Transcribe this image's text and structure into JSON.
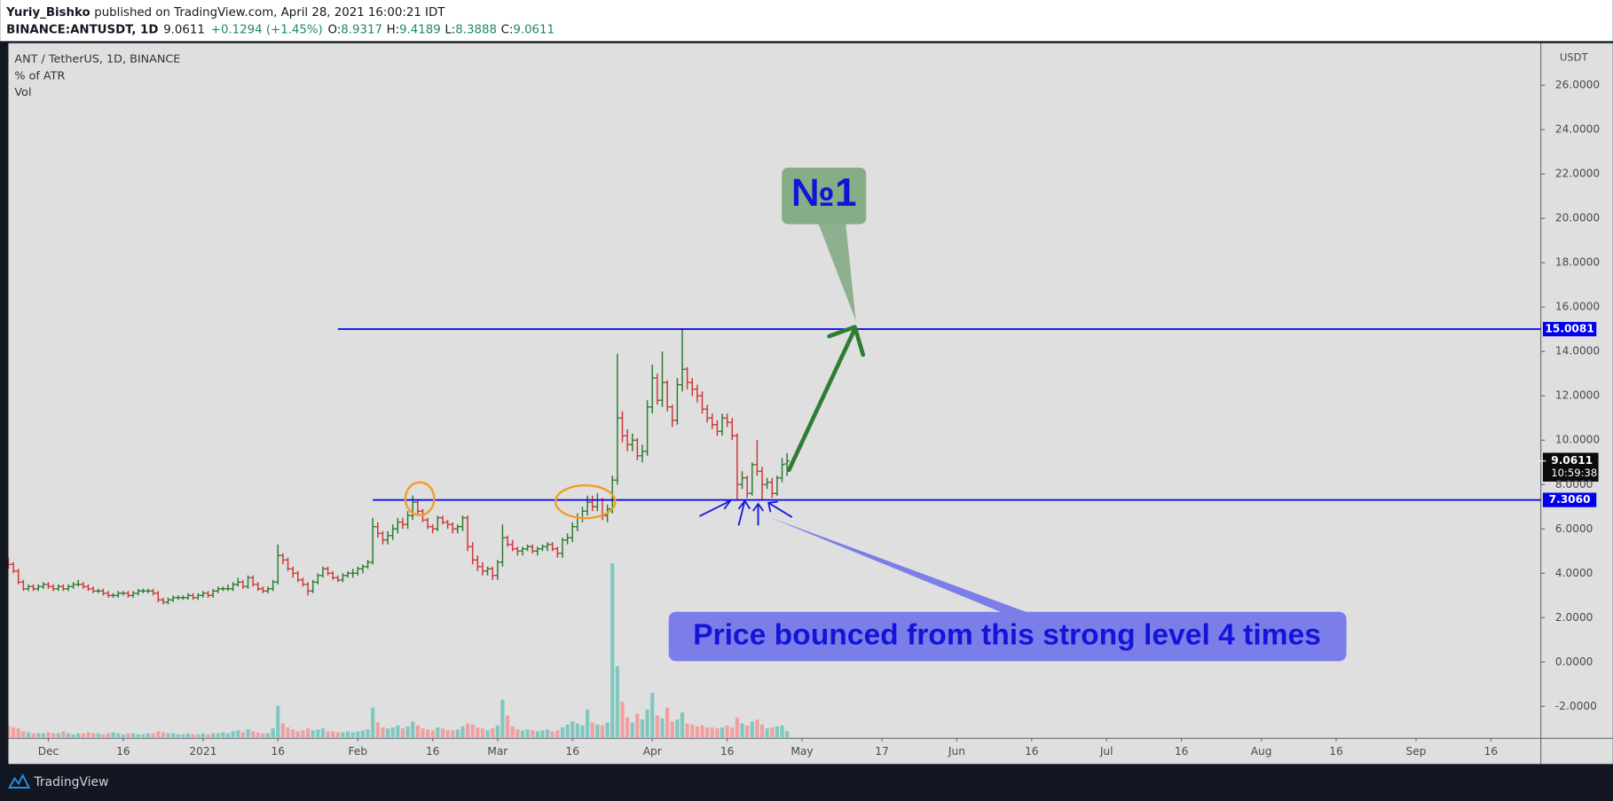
{
  "chart_data": {
    "type": "ohlc",
    "publisher": "Yuriy_Bishko",
    "published": "published on TradingView.com, April 28, 2021 16:00:21 IDT",
    "symbol": "BINANCE:ANTUSDT, 1D",
    "change": "+0.1294 (+1.45%)",
    "ohlc_labels": [
      "O:",
      "H:",
      "L:",
      "C:"
    ],
    "title": "ANT / TetherUS, 1D, BINANCE",
    "indicators": [
      "% of ATR",
      "Vol"
    ],
    "currency": "USDT",
    "up_color": "#2e7d32",
    "down_color": "#d0393a",
    "volume_up_color": "#7ec8bf",
    "volume_down_color": "#f0a0a0",
    "x": [
      "2020-11-23",
      "2020-11-24",
      "2020-11-25",
      "2020-11-26",
      "2020-11-27",
      "2020-11-28",
      "2020-11-29",
      "2020-11-30",
      "2020-12-01",
      "2020-12-02",
      "2020-12-03",
      "2020-12-04",
      "2020-12-05",
      "2020-12-06",
      "2020-12-07",
      "2020-12-08",
      "2020-12-09",
      "2020-12-10",
      "2020-12-11",
      "2020-12-12",
      "2020-12-13",
      "2020-12-14",
      "2020-12-15",
      "2020-12-16",
      "2020-12-17",
      "2020-12-18",
      "2020-12-19",
      "2020-12-20",
      "2020-12-21",
      "2020-12-22",
      "2020-12-23",
      "2020-12-24",
      "2020-12-25",
      "2020-12-26",
      "2020-12-27",
      "2020-12-28",
      "2020-12-29",
      "2020-12-30",
      "2020-12-31",
      "2021-01-01",
      "2021-01-02",
      "2021-01-03",
      "2021-01-04",
      "2021-01-05",
      "2021-01-06",
      "2021-01-07",
      "2021-01-08",
      "2021-01-09",
      "2021-01-10",
      "2021-01-11",
      "2021-01-12",
      "2021-01-13",
      "2021-01-14",
      "2021-01-15",
      "2021-01-16",
      "2021-01-17",
      "2021-01-18",
      "2021-01-19",
      "2021-01-20",
      "2021-01-21",
      "2021-01-22",
      "2021-01-23",
      "2021-01-24",
      "2021-01-25",
      "2021-01-26",
      "2021-01-27",
      "2021-01-28",
      "2021-01-29",
      "2021-01-30",
      "2021-01-31",
      "2021-02-01",
      "2021-02-02",
      "2021-02-03",
      "2021-02-04",
      "2021-02-05",
      "2021-02-06",
      "2021-02-07",
      "2021-02-08",
      "2021-02-09",
      "2021-02-10",
      "2021-02-11",
      "2021-02-12",
      "2021-02-13",
      "2021-02-14",
      "2021-02-15",
      "2021-02-16",
      "2021-02-17",
      "2021-02-18",
      "2021-02-19",
      "2021-02-20",
      "2021-02-21",
      "2021-02-22",
      "2021-02-23",
      "2021-02-24",
      "2021-02-25",
      "2021-02-26",
      "2021-02-27",
      "2021-02-28",
      "2021-03-01",
      "2021-03-02",
      "2021-03-03",
      "2021-03-04",
      "2021-03-05",
      "2021-03-06",
      "2021-03-07",
      "2021-03-08",
      "2021-03-09",
      "2021-03-10",
      "2021-03-11",
      "2021-03-12",
      "2021-03-13",
      "2021-03-14",
      "2021-03-15",
      "2021-03-16",
      "2021-03-17",
      "2021-03-18",
      "2021-03-19",
      "2021-03-20",
      "2021-03-21",
      "2021-03-22",
      "2021-03-23",
      "2021-03-24",
      "2021-03-25",
      "2021-03-26",
      "2021-03-27",
      "2021-03-28",
      "2021-03-29",
      "2021-03-30",
      "2021-03-31",
      "2021-04-01",
      "2021-04-02",
      "2021-04-03",
      "2021-04-04",
      "2021-04-05",
      "2021-04-06",
      "2021-04-07",
      "2021-04-08",
      "2021-04-09",
      "2021-04-10",
      "2021-04-11",
      "2021-04-12",
      "2021-04-13",
      "2021-04-14",
      "2021-04-15",
      "2021-04-16",
      "2021-04-17",
      "2021-04-18",
      "2021-04-19",
      "2021-04-20",
      "2021-04-21",
      "2021-04-22",
      "2021-04-23",
      "2021-04-24",
      "2021-04-25",
      "2021-04-26",
      "2021-04-27",
      "2021-04-28"
    ],
    "open": [
      4.5,
      4.4,
      4.1,
      3.6,
      3.3,
      3.4,
      3.3,
      3.4,
      3.5,
      3.4,
      3.3,
      3.4,
      3.3,
      3.4,
      3.5,
      3.5,
      3.4,
      3.3,
      3.2,
      3.2,
      3.1,
      3.0,
      3.0,
      3.1,
      3.1,
      3.0,
      3.1,
      3.2,
      3.2,
      3.2,
      3.1,
      2.8,
      2.7,
      2.8,
      2.9,
      2.9,
      2.9,
      3.0,
      2.9,
      3.0,
      3.1,
      3.0,
      3.2,
      3.3,
      3.3,
      3.3,
      3.5,
      3.6,
      3.4,
      3.8,
      3.5,
      3.3,
      3.2,
      3.3,
      3.6,
      4.8,
      4.6,
      4.2,
      4.0,
      3.7,
      3.5,
      3.2,
      3.6,
      3.9,
      4.2,
      4.0,
      3.8,
      3.7,
      3.9,
      4.0,
      4.0,
      4.2,
      4.3,
      4.5,
      6.1,
      5.8,
      5.5,
      5.7,
      6.0,
      6.3,
      6.2,
      6.6,
      7.2,
      6.8,
      6.4,
      6.1,
      6.0,
      6.5,
      6.3,
      6.2,
      6.0,
      6.1,
      6.5,
      5.2,
      4.6,
      4.3,
      4.1,
      4.2,
      3.9,
      4.5,
      5.6,
      5.3,
      5.1,
      5.0,
      5.1,
      5.2,
      5.0,
      5.1,
      5.2,
      5.3,
      5.1,
      4.9,
      5.5,
      5.6,
      6.1,
      6.5,
      6.8,
      7.2,
      7.0,
      7.3,
      6.6,
      6.9,
      8.2,
      11.0,
      10.2,
      9.8,
      10.0,
      9.3,
      9.5,
      11.5,
      12.8,
      11.8,
      12.6,
      11.5,
      10.9,
      12.5,
      13.2,
      12.6,
      12.3,
      12.0,
      11.4,
      11.0,
      10.7,
      10.4,
      11.0,
      10.8,
      10.2,
      8.0,
      8.3,
      7.6,
      8.9,
      8.6,
      8.0,
      8.1,
      7.6,
      8.3,
      8.9317
    ],
    "high": [
      4.7,
      4.5,
      4.2,
      3.7,
      3.5,
      3.5,
      3.5,
      3.6,
      3.6,
      3.5,
      3.5,
      3.5,
      3.5,
      3.6,
      3.7,
      3.6,
      3.5,
      3.4,
      3.3,
      3.3,
      3.2,
      3.1,
      3.2,
      3.2,
      3.2,
      3.2,
      3.3,
      3.3,
      3.3,
      3.3,
      3.2,
      2.9,
      2.9,
      3.0,
      3.0,
      3.0,
      3.1,
      3.1,
      3.1,
      3.2,
      3.2,
      3.3,
      3.4,
      3.4,
      3.5,
      3.6,
      3.8,
      3.7,
      3.9,
      3.9,
      3.6,
      3.4,
      3.4,
      3.7,
      5.3,
      4.9,
      4.7,
      4.3,
      4.1,
      3.8,
      3.6,
      3.7,
      4.0,
      4.3,
      4.3,
      4.1,
      3.9,
      4.0,
      4.1,
      4.2,
      4.3,
      4.4,
      4.6,
      6.5,
      6.3,
      5.9,
      5.9,
      6.2,
      6.5,
      6.5,
      6.8,
      7.5,
      7.3,
      6.9,
      6.5,
      6.2,
      6.6,
      6.6,
      6.4,
      6.3,
      6.2,
      6.6,
      6.6,
      5.4,
      4.8,
      4.5,
      4.3,
      4.3,
      4.6,
      6.2,
      5.7,
      5.5,
      5.2,
      5.2,
      5.3,
      5.3,
      5.2,
      5.3,
      5.4,
      5.4,
      5.2,
      5.6,
      5.8,
      6.3,
      6.7,
      7.0,
      7.5,
      7.5,
      7.6,
      7.4,
      7.1,
      8.4,
      13.9,
      11.3,
      10.5,
      10.3,
      10.1,
      9.8,
      11.8,
      13.4,
      13.0,
      14.0,
      12.7,
      11.6,
      12.8,
      15.0081,
      13.3,
      12.8,
      12.5,
      12.2,
      11.6,
      11.2,
      10.9,
      11.2,
      11.2,
      11.0,
      10.3,
      8.6,
      8.4,
      9.0,
      10.0,
      8.8,
      8.3,
      8.3,
      8.4,
      9.2,
      9.4189
    ],
    "low": [
      4.2,
      4.0,
      3.5,
      3.2,
      3.2,
      3.2,
      3.2,
      3.3,
      3.3,
      3.2,
      3.2,
      3.2,
      3.2,
      3.3,
      3.4,
      3.3,
      3.2,
      3.1,
      3.1,
      3.0,
      2.9,
      2.9,
      2.9,
      3.0,
      2.9,
      2.9,
      3.0,
      3.1,
      3.1,
      3.0,
      2.7,
      2.6,
      2.6,
      2.7,
      2.8,
      2.8,
      2.8,
      2.8,
      2.8,
      2.9,
      2.9,
      2.9,
      3.1,
      3.2,
      3.2,
      3.2,
      3.4,
      3.3,
      3.3,
      3.4,
      3.2,
      3.1,
      3.1,
      3.2,
      3.5,
      4.4,
      4.1,
      3.8,
      3.6,
      3.4,
      3.0,
      3.1,
      3.5,
      3.8,
      3.9,
      3.7,
      3.6,
      3.6,
      3.8,
      3.8,
      3.9,
      4.0,
      4.2,
      4.4,
      5.6,
      5.3,
      5.3,
      5.5,
      5.8,
      6.0,
      6.0,
      6.4,
      6.6,
      6.3,
      6.0,
      5.8,
      5.9,
      6.2,
      6.0,
      5.8,
      5.8,
      5.9,
      5.0,
      4.4,
      4.1,
      3.9,
      3.9,
      3.7,
      3.7,
      4.3,
      5.2,
      5.0,
      4.8,
      4.8,
      5.0,
      4.9,
      4.8,
      5.0,
      5.0,
      5.0,
      4.7,
      4.7,
      5.3,
      5.4,
      5.9,
      6.3,
      6.6,
      6.8,
      6.8,
      6.4,
      6.3,
      6.7,
      8.0,
      9.9,
      9.5,
      9.5,
      9.1,
      9.0,
      9.3,
      11.2,
      11.6,
      11.5,
      11.3,
      10.6,
      10.7,
      12.2,
      12.3,
      12.0,
      11.7,
      11.2,
      10.8,
      10.5,
      10.2,
      10.2,
      10.6,
      10.0,
      7.3,
      7.8,
      7.4,
      7.5,
      8.4,
      7.3,
      7.8,
      7.4,
      7.5,
      8.1,
      8.3888
    ],
    "close": [
      4.4,
      4.1,
      3.6,
      3.3,
      3.4,
      3.3,
      3.4,
      3.5,
      3.4,
      3.3,
      3.4,
      3.3,
      3.4,
      3.5,
      3.5,
      3.4,
      3.3,
      3.2,
      3.2,
      3.1,
      3.0,
      3.0,
      3.1,
      3.1,
      3.0,
      3.1,
      3.2,
      3.2,
      3.2,
      3.1,
      2.8,
      2.7,
      2.8,
      2.9,
      2.9,
      2.9,
      3.0,
      2.9,
      3.0,
      3.1,
      3.0,
      3.2,
      3.3,
      3.3,
      3.3,
      3.5,
      3.6,
      3.4,
      3.8,
      3.5,
      3.3,
      3.2,
      3.3,
      3.6,
      4.8,
      4.6,
      4.2,
      4.0,
      3.7,
      3.5,
      3.2,
      3.6,
      3.9,
      4.2,
      4.0,
      3.8,
      3.7,
      3.9,
      4.0,
      4.0,
      4.2,
      4.3,
      4.5,
      6.1,
      5.8,
      5.5,
      5.7,
      6.0,
      6.3,
      6.2,
      6.6,
      7.2,
      6.8,
      6.4,
      6.1,
      6.0,
      6.5,
      6.3,
      6.2,
      6.0,
      6.1,
      6.5,
      5.2,
      4.6,
      4.3,
      4.1,
      4.2,
      3.9,
      4.5,
      5.6,
      5.3,
      5.1,
      5.0,
      5.1,
      5.2,
      5.0,
      5.1,
      5.2,
      5.3,
      5.1,
      4.9,
      5.5,
      5.6,
      6.1,
      6.5,
      6.8,
      7.2,
      7.0,
      7.3,
      6.6,
      6.9,
      8.2,
      11.0,
      10.2,
      9.8,
      10.0,
      9.3,
      9.5,
      11.5,
      12.8,
      11.8,
      12.6,
      11.5,
      10.9,
      12.5,
      13.2,
      12.6,
      12.3,
      12.0,
      11.4,
      11.0,
      10.7,
      10.4,
      11.0,
      10.8,
      10.2,
      8.0,
      8.3,
      7.6,
      8.9,
      8.6,
      8.0,
      8.1,
      7.6,
      8.3,
      8.9,
      9.0611
    ],
    "volume": [
      1.2,
      1.0,
      0.9,
      0.6,
      0.5,
      0.4,
      0.4,
      0.4,
      0.5,
      0.4,
      0.4,
      0.6,
      0.4,
      0.3,
      0.4,
      0.4,
      0.5,
      0.4,
      0.4,
      0.3,
      0.4,
      0.5,
      0.4,
      0.3,
      0.4,
      0.4,
      0.3,
      0.3,
      0.4,
      0.4,
      0.6,
      0.5,
      0.4,
      0.4,
      0.3,
      0.3,
      0.4,
      0.3,
      0.3,
      0.4,
      0.3,
      0.4,
      0.4,
      0.5,
      0.4,
      0.6,
      0.7,
      0.5,
      0.8,
      0.6,
      0.5,
      0.4,
      0.4,
      0.9,
      3.2,
      1.4,
      1.0,
      0.8,
      0.6,
      0.7,
      0.9,
      0.7,
      0.8,
      0.9,
      0.6,
      0.6,
      0.5,
      0.5,
      0.6,
      0.5,
      0.6,
      0.7,
      0.8,
      3.0,
      1.5,
      1.0,
      0.9,
      1.0,
      1.2,
      0.9,
      1.1,
      1.6,
      1.2,
      0.9,
      0.8,
      0.7,
      1.0,
      0.9,
      0.7,
      0.7,
      0.8,
      1.1,
      1.4,
      1.3,
      1.0,
      0.9,
      0.7,
      0.9,
      1.2,
      3.8,
      2.2,
      1.1,
      0.8,
      0.7,
      0.8,
      0.7,
      0.6,
      0.7,
      0.8,
      0.6,
      0.7,
      1.0,
      1.3,
      1.6,
      1.4,
      1.2,
      2.8,
      1.5,
      1.3,
      1.2,
      1.5,
      17.6,
      7.2,
      3.6,
      2.0,
      1.5,
      2.4,
      1.8,
      2.8,
      4.5,
      2.2,
      1.9,
      3.0,
      1.6,
      1.8,
      2.5,
      1.4,
      1.3,
      1.1,
      1.2,
      1.0,
      1.0,
      0.9,
      1.0,
      1.2,
      1.0,
      2.0,
      1.4,
      1.2,
      1.6,
      1.8,
      1.3,
      0.9,
      1.0,
      1.1,
      1.2,
      0.6
    ],
    "xlim": [
      "2020-11-23",
      "2021-09-26"
    ],
    "xticks": [
      {
        "value": "2020-12-01",
        "label": "Dec"
      },
      {
        "value": "2020-12-16",
        "label": "16"
      },
      {
        "value": "2021-01-01",
        "label": "2021"
      },
      {
        "value": "2021-01-16",
        "label": "16"
      },
      {
        "value": "2021-02-01",
        "label": "Feb"
      },
      {
        "value": "2021-02-16",
        "label": "16"
      },
      {
        "value": "2021-03-01",
        "label": "Mar"
      },
      {
        "value": "2021-03-16",
        "label": "16"
      },
      {
        "value": "2021-04-01",
        "label": "Apr"
      },
      {
        "value": "2021-04-16",
        "label": "16"
      },
      {
        "value": "2021-05-01",
        "label": "May"
      },
      {
        "value": "2021-05-17",
        "label": "17"
      },
      {
        "value": "2021-06-01",
        "label": "Jun"
      },
      {
        "value": "2021-06-16",
        "label": "16"
      },
      {
        "value": "2021-07-01",
        "label": "Jul"
      },
      {
        "value": "2021-07-16",
        "label": "16"
      },
      {
        "value": "2021-08-01",
        "label": "Aug"
      },
      {
        "value": "2021-08-16",
        "label": "16"
      },
      {
        "value": "2021-09-01",
        "label": "Sep"
      },
      {
        "value": "2021-09-16",
        "label": "16"
      }
    ],
    "ylim": [
      -3.44,
      27.9
    ],
    "yticks": [
      {
        "value": -2,
        "label": "-2.0000"
      },
      {
        "value": 0,
        "label": "0.0000"
      },
      {
        "value": 2,
        "label": "2.0000"
      },
      {
        "value": 4,
        "label": "4.0000"
      },
      {
        "value": 6,
        "label": "6.0000"
      },
      {
        "value": 8,
        "label": "8.0000"
      },
      {
        "value": 10,
        "label": "10.0000"
      },
      {
        "value": 12,
        "label": "12.0000"
      },
      {
        "value": 14,
        "label": "14.0000"
      },
      {
        "value": 16,
        "label": "16.0000"
      },
      {
        "value": 18,
        "label": "18.0000"
      },
      {
        "value": 20,
        "label": "20.0000"
      },
      {
        "value": 22,
        "label": "22.0000"
      },
      {
        "value": 24,
        "label": "24.0000"
      },
      {
        "value": 26,
        "label": "26.0000"
      }
    ],
    "grid": false,
    "levels": [
      {
        "value": 15.0081,
        "start": "2021-01-28",
        "color": "#0000ee"
      },
      {
        "value": 7.306,
        "label": "7.3060",
        "start": "2021-02-04",
        "color": "#0000ee"
      }
    ],
    "countdown": "10:59:38",
    "annotations": [
      "№1",
      "Price bounced from this strong level 4 times"
    ],
    "brand": "TradingView"
  }
}
